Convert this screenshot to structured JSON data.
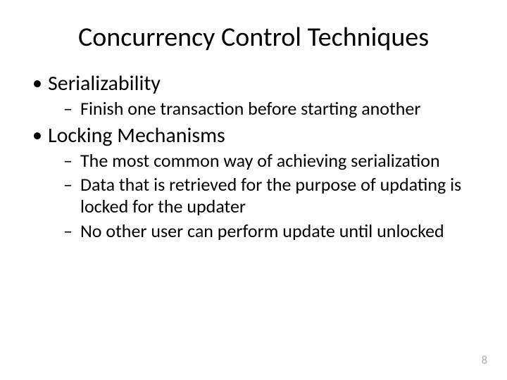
{
  "slide": {
    "title": "Concurrency Control Techniques",
    "title_fontsize": 38,
    "title_color": "#000000",
    "bullets": [
      {
        "text": "Serializability",
        "sub": [
          "Finish one transaction before starting another"
        ]
      },
      {
        "text": "Locking Mechanisms",
        "sub": [
          "The most  common way of achieving serialization",
          "Data that is retrieved for the purpose of updating is locked for the updater",
          "No other user can perform update until unlocked"
        ]
      }
    ],
    "level1_fontsize": 30,
    "level2_fontsize": 26,
    "bullet_marker": "•",
    "subbullet_marker": "–",
    "page_number": "8",
    "page_number_color": "#b5a99a",
    "page_number_fontsize": 16,
    "background_color": "#ffffff",
    "text_color": "#000000",
    "font_family": "Calibri"
  }
}
